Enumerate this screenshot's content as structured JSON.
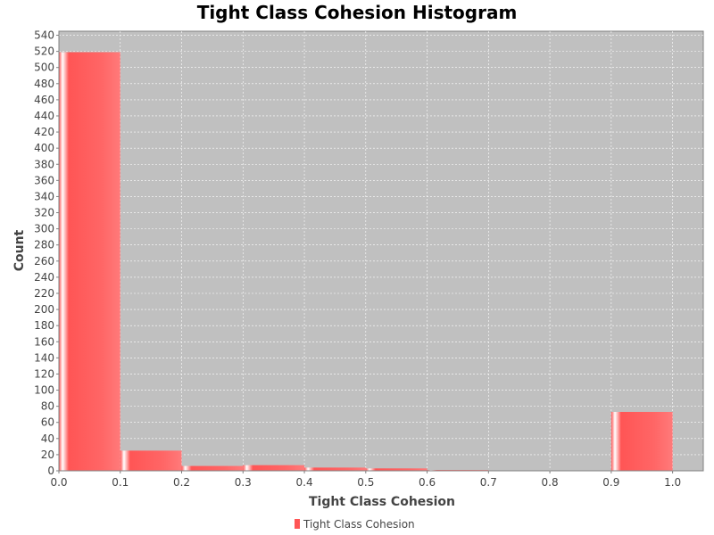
{
  "chart_data": {
    "type": "bar",
    "title": "Tight Class Cohesion Histogram",
    "xlabel": "Tight Class Cohesion",
    "ylabel": "Count",
    "xlim": [
      0.0,
      1.05
    ],
    "ylim": [
      0,
      545
    ],
    "x_ticks": [
      0.0,
      0.1,
      0.2,
      0.3,
      0.4,
      0.5,
      0.6,
      0.7,
      0.8,
      0.9,
      1.0
    ],
    "y_ticks": [
      0,
      20,
      40,
      60,
      80,
      100,
      120,
      140,
      160,
      180,
      200,
      220,
      240,
      260,
      280,
      300,
      320,
      340,
      360,
      380,
      400,
      420,
      440,
      460,
      480,
      500,
      520,
      540
    ],
    "bin_width": 0.1,
    "bins": [
      {
        "start": 0.0,
        "count": 519
      },
      {
        "start": 0.1,
        "count": 25
      },
      {
        "start": 0.2,
        "count": 6
      },
      {
        "start": 0.3,
        "count": 7
      },
      {
        "start": 0.4,
        "count": 4
      },
      {
        "start": 0.5,
        "count": 3
      },
      {
        "start": 0.6,
        "count": 1
      },
      {
        "start": 0.7,
        "count": 0
      },
      {
        "start": 0.8,
        "count": 0
      },
      {
        "start": 0.9,
        "count": 73
      }
    ],
    "grid": true,
    "legend": "bottom-center",
    "series": [
      {
        "name": "Tight Class Cohesion",
        "color": "#ff5555"
      }
    ],
    "plot_background": "#c0c0c0",
    "grid_color": "#ffffff"
  }
}
